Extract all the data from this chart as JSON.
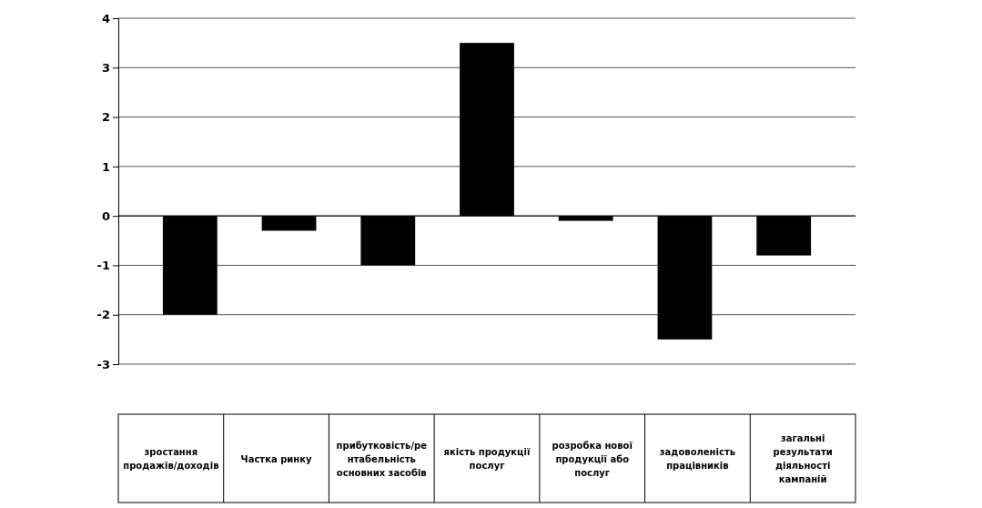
{
  "chart_data": {
    "type": "bar",
    "categories": [
      "зростання продажів/доходів",
      "Частка ринку",
      "прибутковість/рентабельність основних засобів",
      "якість продукції послуг",
      "розробка нової продукції або послуг",
      "задоволеність працівників",
      "загальні результати діяльності кампаній"
    ],
    "values": [
      -2,
      -0.3,
      -1,
      3.5,
      -0.1,
      -2.5,
      -0.8
    ],
    "color": "#000000",
    "ylim": [
      -3,
      4
    ],
    "yticks": [
      -3,
      -2,
      -1,
      0,
      1,
      2,
      3,
      4
    ],
    "grid": "y"
  }
}
